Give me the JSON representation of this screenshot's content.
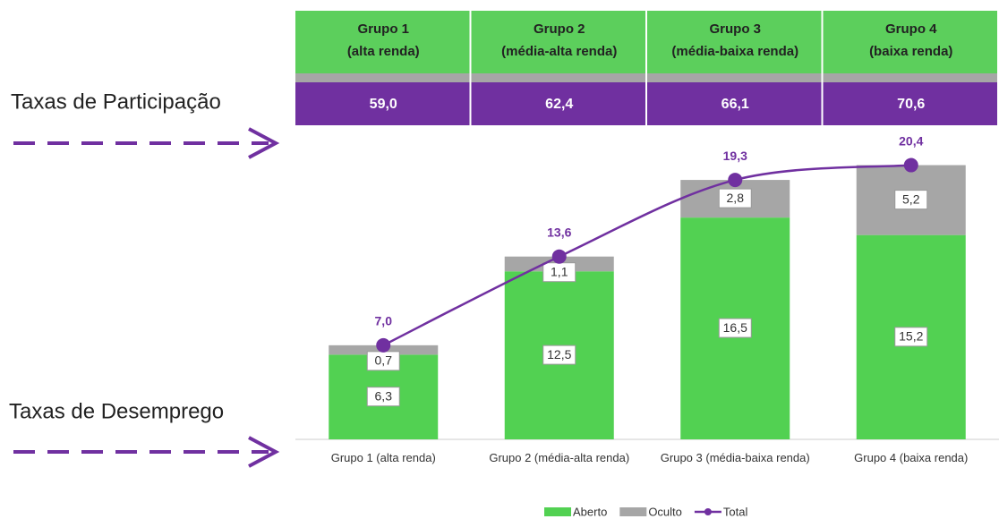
{
  "chart_data": {
    "type": "stacked_bar_line",
    "row_labels": {
      "participation": "Taxas de Participação",
      "unemployment": "Taxas de Desemprego"
    },
    "header": [
      {
        "name": "Grupo 1",
        "income": "(alta renda)"
      },
      {
        "name": "Grupo 2",
        "income": "(média-alta renda)"
      },
      {
        "name": "Grupo 3",
        "income": "(média-baixa renda)"
      },
      {
        "name": "Grupo 4",
        "income": "(baixa renda)"
      }
    ],
    "participation": {
      "values": [
        59.0,
        62.4,
        66.1,
        70.6
      ],
      "value_labels": [
        "59,0",
        "62,4",
        "66,1",
        "70,6"
      ]
    },
    "categories": [
      "Grupo 1 (alta renda)",
      "Grupo 2 (média-alta renda)",
      "Grupo 3 (média-baixa renda)",
      "Grupo 4 (baixa renda)"
    ],
    "series": [
      {
        "name": "Aberto",
        "color": "#52d152",
        "values": [
          6.3,
          12.5,
          16.5,
          15.2
        ],
        "value_labels": [
          "6,3",
          "12,5",
          "16,5",
          "15,2"
        ]
      },
      {
        "name": "Oculto",
        "color": "#a6a6a6",
        "values": [
          0.7,
          1.1,
          2.8,
          5.2
        ],
        "value_labels": [
          "0,7",
          "1,1",
          "2,8",
          "5,2"
        ]
      },
      {
        "name": "Total",
        "color": "#7030a0",
        "type": "line",
        "values": [
          7.0,
          13.6,
          19.3,
          20.4
        ],
        "value_labels": [
          "7,0",
          "13,6",
          "19,3",
          "20,4"
        ]
      }
    ],
    "ylim": [
      0,
      22.7
    ]
  }
}
